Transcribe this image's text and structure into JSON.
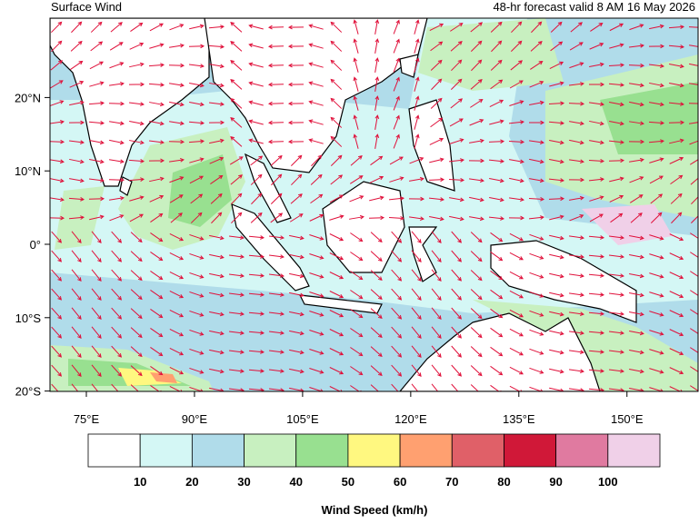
{
  "header": {
    "title": "Surface Wind",
    "subtitle": "48-hr forecast valid 8 AM 16 May 2026"
  },
  "map": {
    "lon_ticks": [
      {
        "value": 75,
        "label": "75°E"
      },
      {
        "value": 90,
        "label": "90°E"
      },
      {
        "value": 105,
        "label": "105°E"
      },
      {
        "value": 120,
        "label": "120°E"
      },
      {
        "value": 135,
        "label": "135°E"
      },
      {
        "value": 150,
        "label": "150°E"
      }
    ],
    "lat_ticks": [
      {
        "value": 20,
        "label": "20°N"
      },
      {
        "value": 10,
        "label": "10°N"
      },
      {
        "value": 0,
        "label": "0°"
      },
      {
        "value": -10,
        "label": "10°S"
      },
      {
        "value": -20,
        "label": "20°S"
      }
    ]
  },
  "legend": {
    "title": "Wind Speed (km/h)",
    "colors": [
      "#ffffff",
      "#d4f7f5",
      "#b0dcea",
      "#c8f0c0",
      "#98e090",
      "#fff880",
      "#ffa070",
      "#e06068",
      "#d01838",
      "#e07aa0",
      "#f0d0e8"
    ],
    "labels": [
      "10",
      "20",
      "30",
      "40",
      "50",
      "60",
      "70",
      "80",
      "90",
      "100"
    ]
  }
}
